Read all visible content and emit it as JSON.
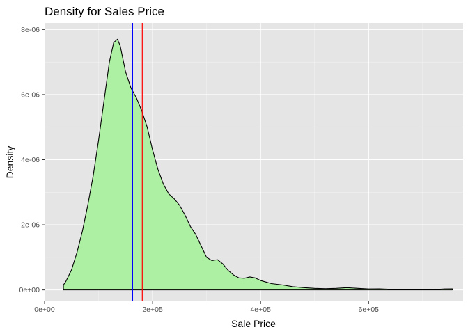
{
  "chart_data": {
    "type": "area",
    "title": "Density for Sales Price",
    "xlabel": "Sale Price",
    "ylabel": "Density",
    "xlim": [
      0,
      775000
    ],
    "ylim": [
      -3.5e-07,
      8.2e-06
    ],
    "x_ticks": [
      {
        "value": 0,
        "label": "0e+00"
      },
      {
        "value": 200000,
        "label": "2e+05"
      },
      {
        "value": 400000,
        "label": "4e+05"
      },
      {
        "value": 600000,
        "label": "6e+05"
      }
    ],
    "y_ticks": [
      {
        "value": 0,
        "label": "0e+00"
      },
      {
        "value": 2e-06,
        "label": "2e-06"
      },
      {
        "value": 4e-06,
        "label": "4e-06"
      },
      {
        "value": 6e-06,
        "label": "6e-06"
      },
      {
        "value": 8e-06,
        "label": "8e-06"
      }
    ],
    "grid": true,
    "fill_color": "#adf0a3",
    "line_color": "#000000",
    "panel_background": "#e5e5e5",
    "series": [
      {
        "x": [
          34900,
          40000,
          50000,
          60000,
          70000,
          80000,
          90000,
          100000,
          110000,
          120000,
          128000,
          135000,
          140000,
          145000,
          150000,
          160000,
          170000,
          180000,
          190000,
          200000,
          210000,
          220000,
          230000,
          240000,
          250000,
          260000,
          270000,
          280000,
          290000,
          300000,
          310000,
          320000,
          330000,
          340000,
          350000,
          360000,
          370000,
          380000,
          390000,
          400000,
          420000,
          440000,
          460000,
          480000,
          500000,
          520000,
          540000,
          560000,
          580000,
          600000,
          620000,
          640000,
          660000,
          680000,
          700000,
          720000,
          740000,
          755000
        ],
        "y": [
          1.5e-07,
          2.8e-07,
          6.2e-07,
          1.15e-06,
          1.8e-06,
          2.6e-06,
          3.5e-06,
          4.6e-06,
          5.8e-06,
          7e-06,
          7.6e-06,
          7.7e-06,
          7.5e-06,
          7.1e-06,
          6.7e-06,
          6.2e-06,
          5.9e-06,
          5.5e-06,
          5e-06,
          4.3e-06,
          3.7e-06,
          3.25e-06,
          2.95e-06,
          2.8e-06,
          2.6e-06,
          2.3e-06,
          1.95e-06,
          1.7e-06,
          1.35e-06,
          1e-06,
          9e-07,
          9.3e-07,
          8e-07,
          6e-07,
          4.6e-07,
          3.7e-07,
          3.6e-07,
          4e-07,
          3.7e-07,
          2.9e-07,
          1.95e-07,
          1.55e-07,
          1e-07,
          7e-08,
          5e-08,
          4e-08,
          5e-08,
          7e-08,
          5e-08,
          3e-08,
          3.5e-08,
          2e-08,
          1e-08,
          5e-09,
          5e-09,
          1e-08,
          3e-08,
          3.5e-08
        ]
      }
    ],
    "vlines": [
      {
        "value": 163000,
        "color": "#0000ff"
      },
      {
        "value": 180921,
        "color": "#ff0000"
      }
    ]
  }
}
